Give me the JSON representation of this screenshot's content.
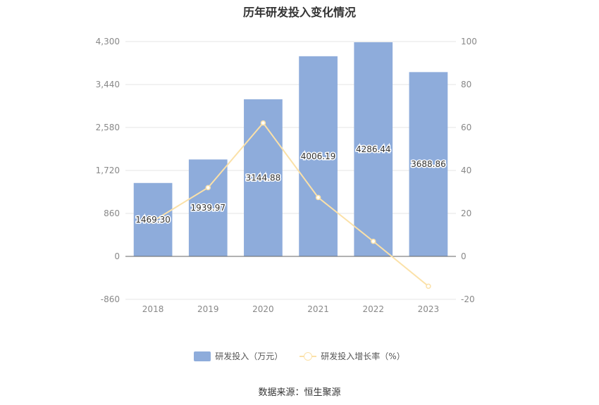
{
  "chart_data": {
    "type": "bar+line",
    "title": "历年研发投入变化情况",
    "categories": [
      "2018",
      "2019",
      "2020",
      "2021",
      "2022",
      "2023"
    ],
    "series": [
      {
        "name": "研发投入（万元）",
        "type": "bar",
        "axis": "left",
        "values": [
          1469.3,
          1939.97,
          3144.88,
          4006.19,
          4286.44,
          3688.86
        ],
        "labels": [
          "1469.30",
          "1939.97",
          "3144.88",
          "4006.19",
          "4286.44",
          "3688.86"
        ],
        "color": "#8eacdb"
      },
      {
        "name": "研发投入增长率（%）",
        "type": "line",
        "axis": "right",
        "values": [
          16.4,
          32.0,
          62.1,
          27.4,
          7.0,
          -13.9
        ],
        "color": "#fbe1a8"
      }
    ],
    "left_axis": {
      "ylim": [
        -860,
        4300
      ],
      "ticks": [
        "4,300",
        "3,440",
        "2,580",
        "1,720",
        "860",
        "0",
        "-860"
      ],
      "tick_values": [
        4300,
        3440,
        2580,
        1720,
        860,
        0,
        -860
      ]
    },
    "right_axis": {
      "ylim": [
        -20,
        100
      ],
      "ticks": [
        "100",
        "80",
        "60",
        "40",
        "20",
        "0",
        "-20"
      ],
      "tick_values": [
        100,
        80,
        60,
        40,
        20,
        0,
        -20
      ]
    },
    "grid": true,
    "legend": "bottom-center"
  },
  "source_text": "数据来源：恒生聚源"
}
